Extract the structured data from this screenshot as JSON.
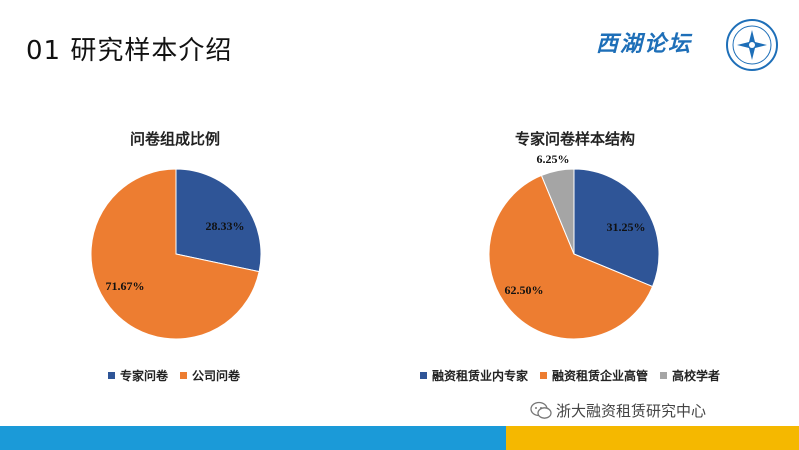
{
  "slide": {
    "title": "01  研究样本介绍",
    "brand_text": "西湖论坛",
    "footer_text": "浙大融资租赁研究中心",
    "colors": {
      "blue": "#2f5597",
      "orange": "#ed7d31",
      "gray": "#a5a5a5",
      "bar_blue": "#1b9ad8",
      "bar_yellow": "#f5b800"
    }
  },
  "chart_data": [
    {
      "type": "pie",
      "title": "问卷组成比例",
      "categories": [
        "专家问卷",
        "公司问卷"
      ],
      "values": [
        28.33,
        71.67
      ],
      "data_labels": [
        "28.33%",
        "71.67%"
      ],
      "colors": [
        "#2f5597",
        "#ed7d31"
      ],
      "legend": "bottom"
    },
    {
      "type": "pie",
      "title": "专家问卷样本结构",
      "categories": [
        "融资租赁业内专家",
        "融资租赁企业高管",
        "高校学者"
      ],
      "values": [
        31.25,
        62.5,
        6.25
      ],
      "data_labels": [
        "31.25%",
        "62.50%",
        "6.25%"
      ],
      "colors": [
        "#2f5597",
        "#ed7d31",
        "#a5a5a5"
      ],
      "legend": "bottom"
    }
  ]
}
